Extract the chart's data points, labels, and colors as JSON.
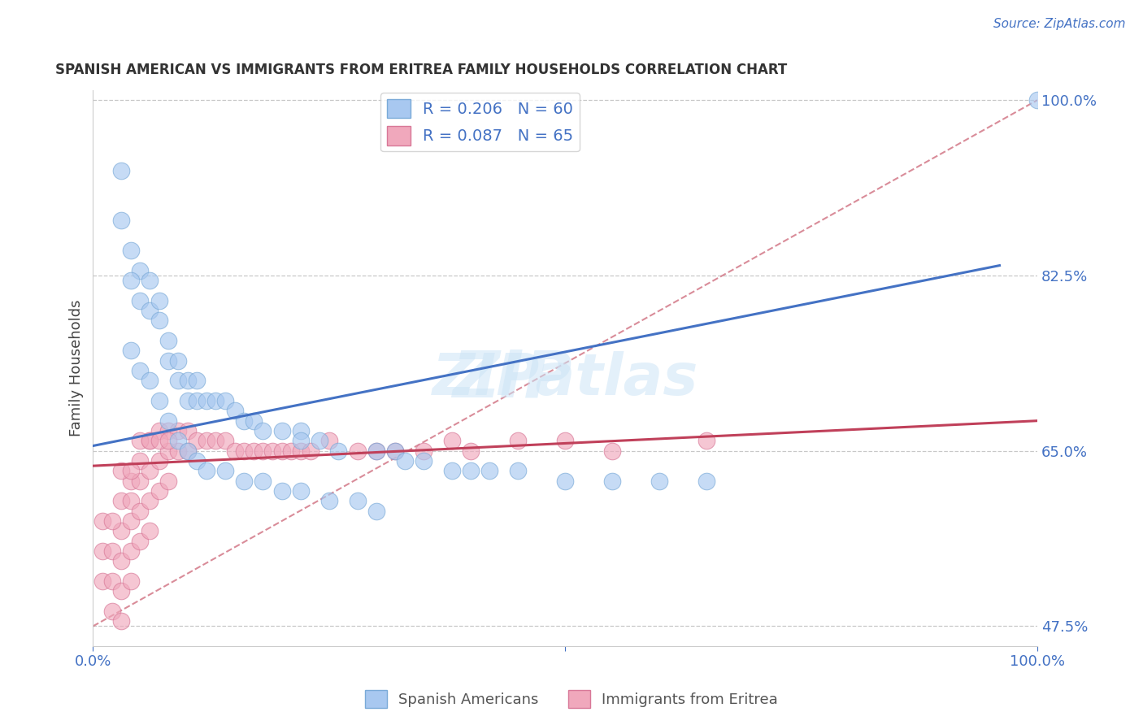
{
  "title": "SPANISH AMERICAN VS IMMIGRANTS FROM ERITREA FAMILY HOUSEHOLDS CORRELATION CHART",
  "source": "Source: ZipAtlas.com",
  "ylabel": "Family Households",
  "xlim": [
    0,
    100
  ],
  "ymin": 47.5,
  "ymax": 100.0,
  "ytick_values": [
    47.5,
    65.0,
    82.5,
    100.0
  ],
  "background_color": "#ffffff",
  "grid_color": "#c8c8c8",
  "grid_style": "--",
  "watermark_zip": "ZIP",
  "watermark_atlas": "atlas",
  "series1_color": "#a8c8f0",
  "series1_edge": "#7aaad8",
  "series2_color": "#f0a8bc",
  "series2_edge": "#d87898",
  "trendline1_color": "#4472c4",
  "trendline2_color": "#c0405a",
  "diagonal_color": "#d07080",
  "blue_label_color": "#4472c4",
  "blue_tick_color": "#4472c4",
  "legend1_label": "R = 0.206   N = 60",
  "legend2_label": "R = 0.087   N = 65",
  "bottom_legend1": "Spanish Americans",
  "bottom_legend2": "Immigrants from Eritrea",
  "series1_x": [
    3,
    4,
    5,
    5,
    6,
    6,
    7,
    7,
    8,
    8,
    9,
    9,
    10,
    10,
    11,
    11,
    12,
    13,
    14,
    15,
    16,
    17,
    18,
    20,
    22,
    22,
    24,
    26,
    30,
    32,
    33,
    35,
    38,
    40,
    42,
    45,
    50,
    55,
    60,
    65,
    4,
    5,
    6,
    7,
    3,
    4,
    8,
    9,
    10,
    11,
    12,
    14,
    16,
    18,
    20,
    22,
    25,
    28,
    30,
    100
  ],
  "series1_y": [
    93,
    85,
    83,
    80,
    82,
    79,
    80,
    78,
    76,
    74,
    74,
    72,
    72,
    70,
    72,
    70,
    70,
    70,
    70,
    69,
    68,
    68,
    67,
    67,
    67,
    66,
    66,
    65,
    65,
    65,
    64,
    64,
    63,
    63,
    63,
    63,
    62,
    62,
    62,
    62,
    75,
    73,
    72,
    70,
    88,
    82,
    68,
    66,
    65,
    64,
    63,
    63,
    62,
    62,
    61,
    61,
    60,
    60,
    59,
    100
  ],
  "series2_x": [
    1,
    1,
    2,
    2,
    2,
    3,
    3,
    3,
    3,
    3,
    4,
    4,
    4,
    4,
    4,
    5,
    5,
    5,
    5,
    6,
    6,
    6,
    6,
    7,
    7,
    7,
    8,
    8,
    8,
    9,
    9,
    10,
    10,
    11,
    12,
    13,
    14,
    15,
    16,
    17,
    18,
    19,
    20,
    21,
    22,
    23,
    25,
    28,
    30,
    32,
    35,
    38,
    40,
    45,
    50,
    55,
    65,
    1,
    2,
    3,
    4,
    5,
    6,
    7,
    8
  ],
  "series2_y": [
    55,
    52,
    55,
    52,
    49,
    60,
    57,
    54,
    51,
    48,
    62,
    60,
    58,
    55,
    52,
    64,
    62,
    59,
    56,
    66,
    63,
    60,
    57,
    67,
    64,
    61,
    67,
    65,
    62,
    67,
    65,
    67,
    65,
    66,
    66,
    66,
    66,
    65,
    65,
    65,
    65,
    65,
    65,
    65,
    65,
    65,
    66,
    65,
    65,
    65,
    65,
    66,
    65,
    66,
    66,
    65,
    66,
    58,
    58,
    63,
    63,
    66,
    66,
    66,
    66
  ],
  "trendline1_x0": 0,
  "trendline1_x1": 96,
  "trendline1_y0": 65.5,
  "trendline1_y1": 83.5,
  "trendline2_x0": 0,
  "trendline2_x1": 100,
  "trendline2_y0": 63.5,
  "trendline2_y1": 68.0,
  "diagonal_x0": 0,
  "diagonal_x1": 100,
  "diagonal_y0": 47.5,
  "diagonal_y1": 100.0
}
